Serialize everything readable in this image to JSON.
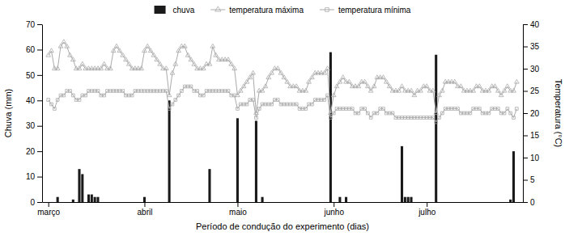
{
  "chart_data": {
    "type": "bar",
    "xlabel": "Período de condução do experimento (dias)",
    "ylabel": "Chuva (mm)",
    "y2label": "Temperatura (°C)",
    "x": [
      0,
      1,
      2,
      3,
      4,
      5,
      6,
      7,
      8,
      9,
      10,
      11,
      12,
      13,
      14,
      15,
      16,
      17,
      18,
      19,
      20,
      21,
      22,
      23,
      24,
      25,
      26,
      27,
      28,
      29,
      30,
      31,
      32,
      33,
      34,
      35,
      36,
      37,
      38,
      39,
      40,
      41,
      42,
      43,
      44,
      45,
      46,
      47,
      48,
      49,
      50,
      51,
      52,
      53,
      54,
      55,
      56,
      57,
      58,
      59,
      60,
      61,
      62,
      63,
      64,
      65,
      66,
      67,
      68,
      69,
      70,
      71,
      72,
      73,
      74,
      75,
      76,
      77,
      78,
      79,
      80,
      81,
      82,
      83,
      84,
      85,
      86,
      87,
      88,
      89,
      90,
      91,
      92,
      93,
      94,
      95,
      96,
      97,
      98,
      99,
      100,
      101,
      102,
      103,
      104,
      105,
      106,
      107,
      108,
      109,
      110,
      111,
      112,
      113,
      114,
      115,
      116,
      117,
      118,
      119,
      120,
      121,
      122,
      123,
      124,
      125,
      126,
      127,
      128,
      129,
      130,
      131,
      132,
      133,
      134,
      135,
      136,
      137,
      138,
      139,
      140,
      141,
      142,
      143,
      144,
      145,
      146,
      147,
      148,
      149,
      150,
      151
    ],
    "xlim": [
      -2,
      153
    ],
    "xticks": [
      {
        "value": 0,
        "label": "março"
      },
      {
        "value": 31,
        "label": "abril"
      },
      {
        "value": 61,
        "label": "maio"
      },
      {
        "value": 92,
        "label": "junho"
      },
      {
        "value": 122,
        "label": "julho"
      }
    ],
    "ylim": [
      0,
      70
    ],
    "yticks": [
      0,
      10,
      20,
      30,
      40,
      50,
      60,
      70
    ],
    "y2lim": [
      0,
      40
    ],
    "y2ticks": [
      0,
      5,
      10,
      15,
      20,
      25,
      30,
      35,
      40
    ],
    "legend": "top",
    "series": [
      {
        "name": "chuva",
        "type": "bar",
        "color": "#1a1a1a",
        "values": [
          0,
          0,
          0,
          2,
          0,
          0,
          0,
          0,
          1,
          0,
          13,
          11,
          0,
          3,
          3,
          2,
          2,
          0,
          0,
          0,
          0,
          0,
          0,
          0,
          0,
          0,
          0,
          0,
          0,
          0,
          0,
          2,
          0,
          0,
          0,
          0,
          0,
          0,
          0,
          40,
          0,
          0,
          0,
          0,
          0,
          0,
          0,
          0,
          0,
          0,
          0,
          0,
          13,
          0,
          0,
          0,
          0,
          0,
          0,
          0,
          0,
          33,
          0,
          0,
          0,
          0,
          0,
          32,
          0,
          2,
          0,
          0,
          0,
          0,
          0,
          0,
          0,
          0,
          0,
          0,
          0,
          0,
          0,
          0,
          0,
          0,
          0,
          0,
          0,
          0,
          0,
          59,
          0,
          0,
          2,
          0,
          2,
          0,
          0,
          0,
          0,
          0,
          0,
          0,
          0,
          0,
          0,
          0,
          0,
          0,
          0,
          0,
          0,
          0,
          22,
          2,
          2,
          2,
          0,
          0,
          0,
          0,
          0,
          0,
          0,
          58,
          0,
          0,
          0,
          0,
          0,
          0,
          0,
          0,
          0,
          0,
          0,
          0,
          0,
          0,
          0,
          0,
          0,
          0,
          0,
          0,
          0,
          0,
          0,
          1,
          20,
          0
        ]
      },
      {
        "name": "temperatura máxima",
        "type": "line",
        "axis": "y2",
        "color": "#aaaaaa",
        "marker": "triangle",
        "values": [
          33,
          34,
          30,
          30,
          35,
          36,
          35,
          33,
          32,
          30,
          30,
          31,
          30,
          30,
          30,
          30,
          30,
          30,
          31,
          30,
          30,
          34,
          35,
          34,
          33,
          32,
          31,
          30,
          30,
          30,
          30,
          34,
          35,
          34,
          33,
          32,
          31,
          30,
          30,
          24,
          29,
          31,
          34,
          35,
          35,
          33,
          32,
          31,
          30,
          30,
          30,
          31,
          31,
          35,
          33,
          32,
          32,
          32,
          32,
          31,
          30,
          24,
          25,
          26,
          27,
          28,
          29,
          20,
          25,
          25,
          26,
          28,
          29,
          30,
          30,
          29,
          28,
          27,
          26,
          26,
          26,
          25,
          25,
          25,
          27,
          28,
          29,
          29,
          29,
          29,
          30,
          20,
          24,
          26,
          27,
          28,
          27,
          27,
          26,
          26,
          26,
          27,
          27,
          26,
          25,
          26,
          28,
          28,
          28,
          27,
          26,
          25,
          25,
          25,
          26,
          25,
          25,
          25,
          24,
          25,
          25,
          26,
          26,
          25,
          25,
          20,
          24,
          25,
          27,
          27,
          27,
          27,
          26,
          26,
          25,
          25,
          25,
          25,
          26,
          26,
          25,
          25,
          25,
          26,
          26,
          25,
          24,
          25,
          26,
          25,
          25,
          27
        ]
      },
      {
        "name": "temperatura mínima",
        "type": "line",
        "axis": "y2",
        "color": "#aaaaaa",
        "marker": "square",
        "values": [
          23,
          22,
          21,
          23,
          24,
          24,
          25,
          25,
          24,
          23,
          23,
          24,
          24,
          25,
          25,
          25,
          25,
          24,
          24,
          25,
          25,
          25,
          25,
          25,
          25,
          24,
          24,
          24,
          25,
          25,
          25,
          25,
          25,
          25,
          25,
          25,
          25,
          25,
          25,
          21,
          22,
          23,
          24,
          25,
          26,
          26,
          26,
          25,
          25,
          24,
          24,
          25,
          25,
          25,
          25,
          25,
          25,
          25,
          25,
          24,
          24,
          21,
          22,
          22,
          22,
          23,
          23,
          19,
          21,
          22,
          22,
          22,
          22,
          23,
          23,
          22,
          22,
          22,
          22,
          22,
          22,
          21,
          21,
          21,
          22,
          22,
          23,
          23,
          23,
          23,
          24,
          19,
          20,
          21,
          21,
          21,
          21,
          21,
          21,
          20,
          20,
          21,
          21,
          20,
          19,
          20,
          20,
          21,
          21,
          20,
          20,
          20,
          19,
          19,
          19,
          19,
          19,
          19,
          19,
          19,
          19,
          19,
          19,
          19,
          19,
          18,
          19,
          20,
          21,
          21,
          21,
          21,
          21,
          20,
          20,
          20,
          20,
          21,
          21,
          21,
          20,
          20,
          20,
          21,
          21,
          21,
          20,
          20,
          21,
          20,
          19,
          21
        ]
      }
    ]
  }
}
